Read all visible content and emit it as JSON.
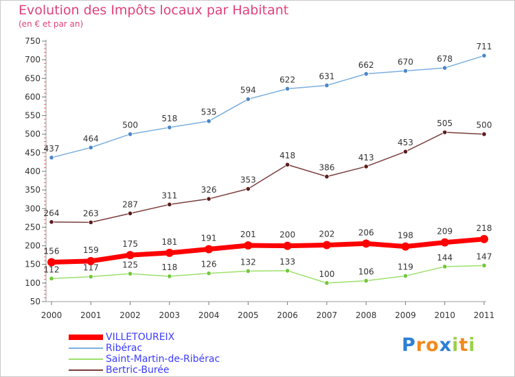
{
  "title": "Evolution des Impôts locaux par Habitant",
  "subtitle": "(en € et par an)",
  "chart_data": {
    "type": "line",
    "x": [
      "2000",
      "2001",
      "2002",
      "2003",
      "2004",
      "2005",
      "2006",
      "2007",
      "2008",
      "2009",
      "2010",
      "2011"
    ],
    "ylim": [
      50,
      750
    ],
    "yticks": [
      50,
      100,
      150,
      200,
      250,
      300,
      350,
      400,
      450,
      500,
      550,
      600,
      650,
      700,
      750
    ],
    "grid": false,
    "legend_position": "bottom-left",
    "series": [
      {
        "name": "Ribérac",
        "color": "#7aaede",
        "marker": "#4a86c8",
        "labelColor": "#333333",
        "width": 1.5,
        "values": [
          437,
          464,
          500,
          518,
          535,
          594,
          622,
          631,
          662,
          670,
          678,
          711
        ]
      },
      {
        "name": "Bertric-Burée",
        "color": "#7a3b3b",
        "marker": "#5c1c1c",
        "labelColor": "#333333",
        "width": 1.5,
        "values": [
          264,
          263,
          287,
          311,
          326,
          353,
          418,
          386,
          413,
          453,
          505,
          500
        ]
      },
      {
        "name": "Saint-Martin-de-Ribérac",
        "color": "#9ce06a",
        "marker": "#70c83a",
        "labelColor": "#333333",
        "width": 1.5,
        "values": [
          112,
          117,
          125,
          118,
          126,
          132,
          133,
          100,
          106,
          119,
          144,
          147
        ]
      },
      {
        "name": "VILLETOUREIX",
        "color": "#ff0000",
        "marker": "#ff0000",
        "labelColor": "#333333",
        "width": 7,
        "values": [
          156,
          159,
          175,
          181,
          191,
          201,
          200,
          202,
          206,
          198,
          209,
          218
        ]
      }
    ]
  },
  "legend": {
    "items": [
      {
        "label": "VILLETOUREIX",
        "color": "#ff0000",
        "thick": true
      },
      {
        "label": "Ribérac",
        "color": "#7aaede",
        "thick": false
      },
      {
        "label": "Saint-Martin-de-Ribérac",
        "color": "#9ce06a",
        "thick": false
      },
      {
        "label": "Bertric-Burée",
        "color": "#7a3b3b",
        "thick": false
      }
    ]
  },
  "logo": {
    "text": "Proxiti",
    "letters": [
      {
        "ch": "P",
        "color": "#2a7fd6"
      },
      {
        "ch": "r",
        "color": "#f08a1c"
      },
      {
        "ch": "o",
        "color": "#f08a1c"
      },
      {
        "ch": "x",
        "color": "#2a7fd6"
      },
      {
        "ch": "i",
        "color": "#9ad04a"
      },
      {
        "ch": "t",
        "color": "#f08a1c"
      },
      {
        "ch": "i",
        "color": "#9ad04a"
      }
    ]
  }
}
